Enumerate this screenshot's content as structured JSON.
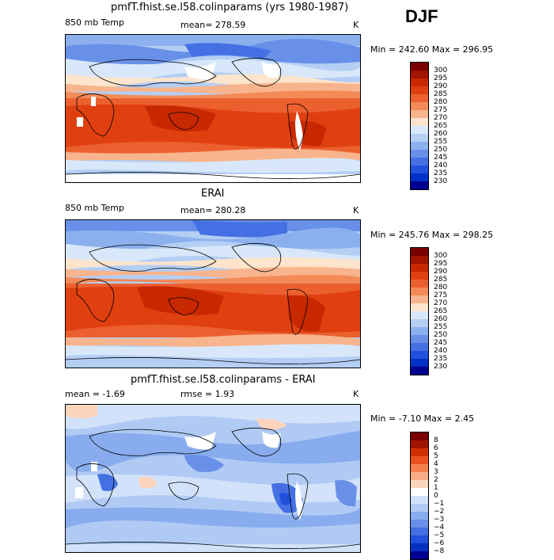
{
  "season": "DJF",
  "panels": [
    {
      "title": "pmfT.fhist.se.l58.colinparams (yrs 1980-1987)",
      "field_label": "850 mb Temp",
      "mean_text": "mean= 278.59",
      "units": "K",
      "minmax": "Min = 242.60 Max = 296.95",
      "colorbar_labels": [
        "300",
        "295",
        "290",
        "285",
        "280",
        "275",
        "270",
        "265",
        "260",
        "255",
        "250",
        "245",
        "240",
        "235",
        "230"
      ]
    },
    {
      "title": "ERAI",
      "field_label": "850 mb Temp",
      "mean_text": "mean= 280.28",
      "units": "K",
      "minmax": "Min = 245.76 Max = 298.25",
      "colorbar_labels": [
        "300",
        "295",
        "290",
        "285",
        "280",
        "275",
        "270",
        "265",
        "260",
        "255",
        "250",
        "245",
        "240",
        "235",
        "230"
      ]
    },
    {
      "title": "pmfT.fhist.se.l58.colinparams - ERAI",
      "field_label": "mean =   -1.69",
      "mean_text": "rmse =    1.93",
      "units": "K",
      "minmax": "Min =  -7.10 Max =    2.45",
      "colorbar_labels": [
        "8",
        "6",
        "5",
        "4",
        "3",
        "2",
        "1",
        "0",
        "−1",
        "−2",
        "−3",
        "−4",
        "−5",
        "−6",
        "−8"
      ]
    }
  ],
  "colors": {
    "temp_scale": [
      "#7a0000",
      "#a01400",
      "#c82800",
      "#e04010",
      "#ec6030",
      "#f48a58",
      "#f8b48c",
      "#fde4cc",
      "#d8e8fa",
      "#b4cef4",
      "#8cb0ee",
      "#6890e8",
      "#4470e4",
      "#2050dc",
      "#0030c8",
      "#000090"
    ],
    "diff_scale": [
      "#7a0000",
      "#a01400",
      "#d03000",
      "#ec5020",
      "#f48050",
      "#f8ac84",
      "#fcd4bc",
      "#ffffff",
      "#d2e2fa",
      "#b0caf4",
      "#88acee",
      "#6890e8",
      "#4470e4",
      "#2050dc",
      "#0830c0",
      "#000090"
    ],
    "missing": "#ffffff"
  }
}
